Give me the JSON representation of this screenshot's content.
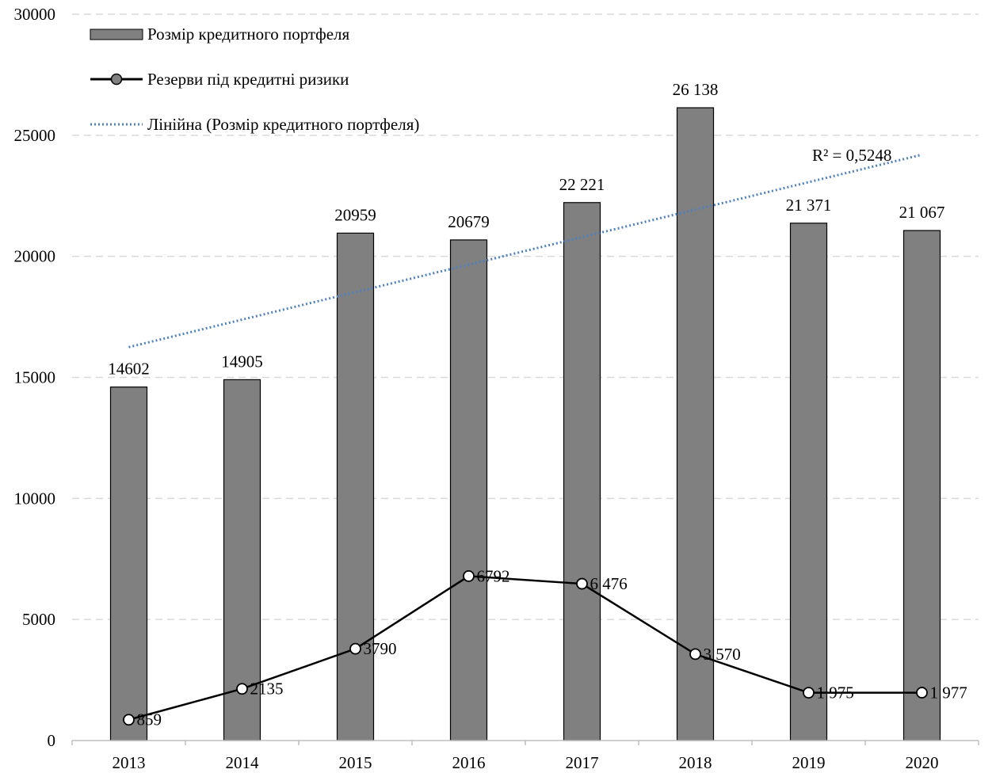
{
  "chart_data": {
    "type": "bar",
    "categories": [
      "2013",
      "2014",
      "2015",
      "2016",
      "2017",
      "2018",
      "2019",
      "2020"
    ],
    "ylim": [
      0,
      30000
    ],
    "yticks": [
      0,
      5000,
      10000,
      15000,
      20000,
      25000,
      30000
    ],
    "ytick_labels": [
      "0",
      "5000",
      "10000",
      "15000",
      "20000",
      "25000",
      "30000"
    ],
    "grid": true,
    "legend_position": "top-left",
    "series": [
      {
        "name": "Розмір кредитного портфеля",
        "type": "bar",
        "color": "#808080",
        "values": [
          14602,
          14905,
          20959,
          20679,
          22221,
          26138,
          21371,
          21067
        ],
        "labels": [
          "14602",
          "14905",
          "20959",
          "20679",
          "22 221",
          "26 138",
          "21 371",
          "21 067"
        ]
      },
      {
        "name": "Резерви під кредитні ризики",
        "type": "line",
        "color": "#000000",
        "marker": "circle",
        "values": [
          859,
          2135,
          3790,
          6792,
          6476,
          3570,
          1975,
          1977
        ],
        "labels": [
          "859",
          "2135",
          "3790",
          "6792",
          "6 476",
          "3 570",
          "1 975",
          "1 977"
        ]
      },
      {
        "name": "Лінійна (Розмір кредитного портфеля)",
        "type": "trendline",
        "color": "#4f81bd",
        "start": 16250,
        "end": 24200,
        "r2_label": "R² = 0,5248"
      }
    ]
  }
}
